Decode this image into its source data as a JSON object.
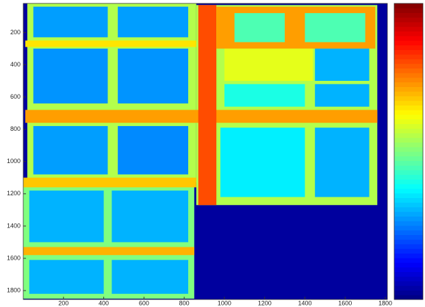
{
  "chart_data": {
    "type": "heatmap",
    "colormap": "jet",
    "clim": [
      0,
      1
    ],
    "xlim": [
      0,
      1810
    ],
    "ylim": [
      20,
      1855
    ],
    "xticks": [
      200,
      400,
      600,
      800,
      1000,
      1200,
      1400,
      1600,
      1800
    ],
    "yticks": [
      200,
      400,
      600,
      800,
      1000,
      1200,
      1400,
      1600,
      1800
    ],
    "background": 0.03,
    "regions": [
      {
        "x": [
          20,
          860
        ],
        "y": [
          20,
          1130
        ],
        "level": 0.55
      },
      {
        "x": [
          0,
          850
        ],
        "y": [
          1130,
          1850
        ],
        "level": 0.5
      },
      {
        "x": [
          860,
          1760
        ],
        "y": [
          30,
          1270
        ],
        "level": 0.55
      },
      {
        "x": [
          10,
          860
        ],
        "y": [
          250,
          290
        ],
        "level": 0.65
      },
      {
        "x": [
          10,
          1760
        ],
        "y": [
          680,
          760
        ],
        "level": 0.72
      },
      {
        "x": [
          0,
          860
        ],
        "y": [
          1100,
          1160
        ],
        "level": 0.68
      },
      {
        "x": [
          0,
          850
        ],
        "y": [
          1530,
          1580
        ],
        "level": 0.7
      },
      {
        "x": [
          870,
          960
        ],
        "y": [
          30,
          1270
        ],
        "level": 0.8
      },
      {
        "x": [
          960,
          1750
        ],
        "y": [
          40,
          300
        ],
        "level": 0.72
      },
      {
        "x": [
          50,
          420
        ],
        "y": [
          40,
          230
        ],
        "level": 0.28
      },
      {
        "x": [
          470,
          820
        ],
        "y": [
          40,
          230
        ],
        "level": 0.28
      },
      {
        "x": [
          50,
          420
        ],
        "y": [
          300,
          640
        ],
        "level": 0.27
      },
      {
        "x": [
          470,
          820
        ],
        "y": [
          300,
          640
        ],
        "level": 0.27
      },
      {
        "x": [
          50,
          420
        ],
        "y": [
          780,
          1080
        ],
        "level": 0.28
      },
      {
        "x": [
          470,
          820
        ],
        "y": [
          780,
          1080
        ],
        "level": 0.26
      },
      {
        "x": [
          30,
          400
        ],
        "y": [
          1180,
          1500
        ],
        "level": 0.3
      },
      {
        "x": [
          440,
          820
        ],
        "y": [
          1180,
          1500
        ],
        "level": 0.3
      },
      {
        "x": [
          30,
          400
        ],
        "y": [
          1610,
          1820
        ],
        "level": 0.3
      },
      {
        "x": [
          440,
          820
        ],
        "y": [
          1610,
          1820
        ],
        "level": 0.3
      },
      {
        "x": [
          1050,
          1300
        ],
        "y": [
          80,
          260
        ],
        "level": 0.45
      },
      {
        "x": [
          1400,
          1700
        ],
        "y": [
          80,
          260
        ],
        "level": 0.45
      },
      {
        "x": [
          1000,
          1440
        ],
        "y": [
          300,
          500
        ],
        "level": 0.6
      },
      {
        "x": [
          1450,
          1720
        ],
        "y": [
          300,
          500
        ],
        "level": 0.3
      },
      {
        "x": [
          1000,
          1400
        ],
        "y": [
          520,
          660
        ],
        "level": 0.4
      },
      {
        "x": [
          1450,
          1720
        ],
        "y": [
          520,
          660
        ],
        "level": 0.3
      },
      {
        "x": [
          980,
          1400
        ],
        "y": [
          790,
          1220
        ],
        "level": 0.36
      },
      {
        "x": [
          1450,
          1720
        ],
        "y": [
          790,
          1220
        ],
        "level": 0.3
      }
    ]
  }
}
